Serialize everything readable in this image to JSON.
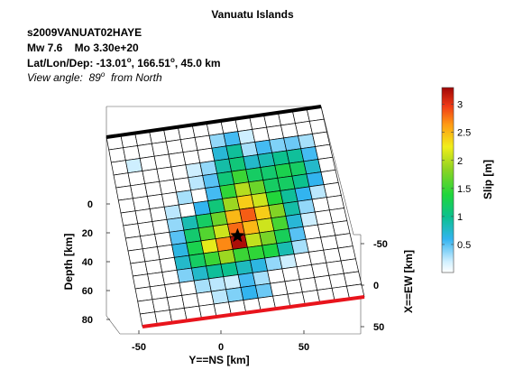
{
  "header": {
    "title": "Vanuatu Islands",
    "event_id": "s2009VANUAT02HAYE",
    "magnitude_line": "Mw 7.6    Mo 3.30e+20",
    "location_prefix": "Lat/Lon/Dep: ",
    "lat": "-13.01",
    "lon": "166.51",
    "location_suffix": ", 45.0 km",
    "degree_symbol": "o",
    "view_prefix": "View angle:  89",
    "view_suffix": "  from North"
  },
  "chart_data": {
    "type": "heatmap",
    "title": "Vanuatu Islands",
    "grid_size": [
      15,
      15
    ],
    "slip_unit_label": "Slip [m]",
    "colorbar": {
      "range": [
        0,
        3.3
      ],
      "ticks": [
        0.5,
        1,
        1.5,
        2,
        2.5,
        3
      ],
      "tick_labels": [
        "0.5",
        "1",
        "1.5",
        "2",
        "2.5",
        "3"
      ]
    },
    "axes": {
      "y_ns": {
        "label": "Y==NS [km]",
        "ticks": [
          -50,
          0,
          50
        ],
        "tick_labels": [
          "-50",
          "0",
          "50"
        ]
      },
      "depth": {
        "label": "Depth [km]",
        "ticks": [
          0,
          20,
          40,
          60,
          80
        ],
        "tick_labels": [
          "0",
          "20",
          "40",
          "60",
          "80"
        ]
      },
      "x_ew": {
        "label": "X==EW [km]",
        "ticks": [
          -50,
          0,
          50
        ],
        "tick_labels": [
          "-50",
          "0",
          "50"
        ]
      }
    },
    "hypocenter": {
      "row": 9,
      "col": 7.5
    },
    "top_edge_color": "#000000",
    "bottom_edge_color": "#e8141c",
    "slip_rows": [
      [
        0,
        0,
        0,
        0,
        0,
        0,
        0,
        0,
        0,
        0,
        0,
        0,
        0,
        0,
        0
      ],
      [
        0,
        0,
        0,
        0,
        0,
        0,
        0,
        0.35,
        0.55,
        0.2,
        0,
        0,
        0,
        0,
        0
      ],
      [
        0,
        0.2,
        0,
        0,
        0,
        0,
        0,
        0.7,
        0.95,
        0.3,
        0.55,
        0.4,
        0.45,
        0.3,
        0
      ],
      [
        0,
        0,
        0,
        0,
        0,
        0.2,
        0.35,
        0.9,
        1.1,
        0.75,
        0.85,
        1.0,
        0.95,
        0.55,
        0
      ],
      [
        0,
        0,
        0,
        0,
        0,
        0.25,
        0.5,
        1.1,
        1.5,
        1.2,
        1.15,
        1.3,
        1.2,
        0.75,
        0
      ],
      [
        0,
        0,
        0,
        0,
        0.3,
        0,
        0.55,
        1.45,
        2.0,
        1.7,
        1.2,
        1.2,
        1.0,
        0.6,
        0
      ],
      [
        0,
        0,
        0,
        0.25,
        0,
        0.6,
        1.1,
        1.9,
        2.4,
        2.1,
        1.4,
        0.95,
        0.6,
        0.25,
        0
      ],
      [
        0,
        0,
        0,
        0.35,
        0.85,
        1.2,
        1.7,
        2.5,
        2.85,
        2.4,
        1.8,
        0.9,
        0.35,
        0,
        0
      ],
      [
        0,
        0,
        0,
        0.5,
        1.15,
        1.6,
        2.1,
        2.8,
        2.5,
        2.1,
        1.55,
        0.7,
        0.2,
        0,
        0
      ],
      [
        0,
        0,
        0,
        0.65,
        1.3,
        2.2,
        2.7,
        3.25,
        2.05,
        1.75,
        1.25,
        0.5,
        0,
        0,
        0
      ],
      [
        0,
        0,
        0,
        0.75,
        1.2,
        1.5,
        1.9,
        1.5,
        1.45,
        1.35,
        0.85,
        0.3,
        0,
        0,
        0
      ],
      [
        0,
        0,
        0,
        0.4,
        0.75,
        0.95,
        1.0,
        0.8,
        0.65,
        0.35,
        0.2,
        0,
        0,
        0,
        0
      ],
      [
        0,
        0,
        0,
        0,
        0.3,
        0.25,
        0.2,
        0.55,
        0.3,
        0,
        0,
        0,
        0,
        0,
        0
      ],
      [
        0,
        0,
        0,
        0,
        0,
        0.25,
        0.4,
        0.6,
        0.45,
        0,
        0,
        0,
        0,
        0,
        0
      ],
      [
        0,
        0,
        0,
        0,
        0,
        0,
        0,
        0,
        0,
        0,
        0,
        0,
        0,
        0,
        0
      ]
    ]
  }
}
